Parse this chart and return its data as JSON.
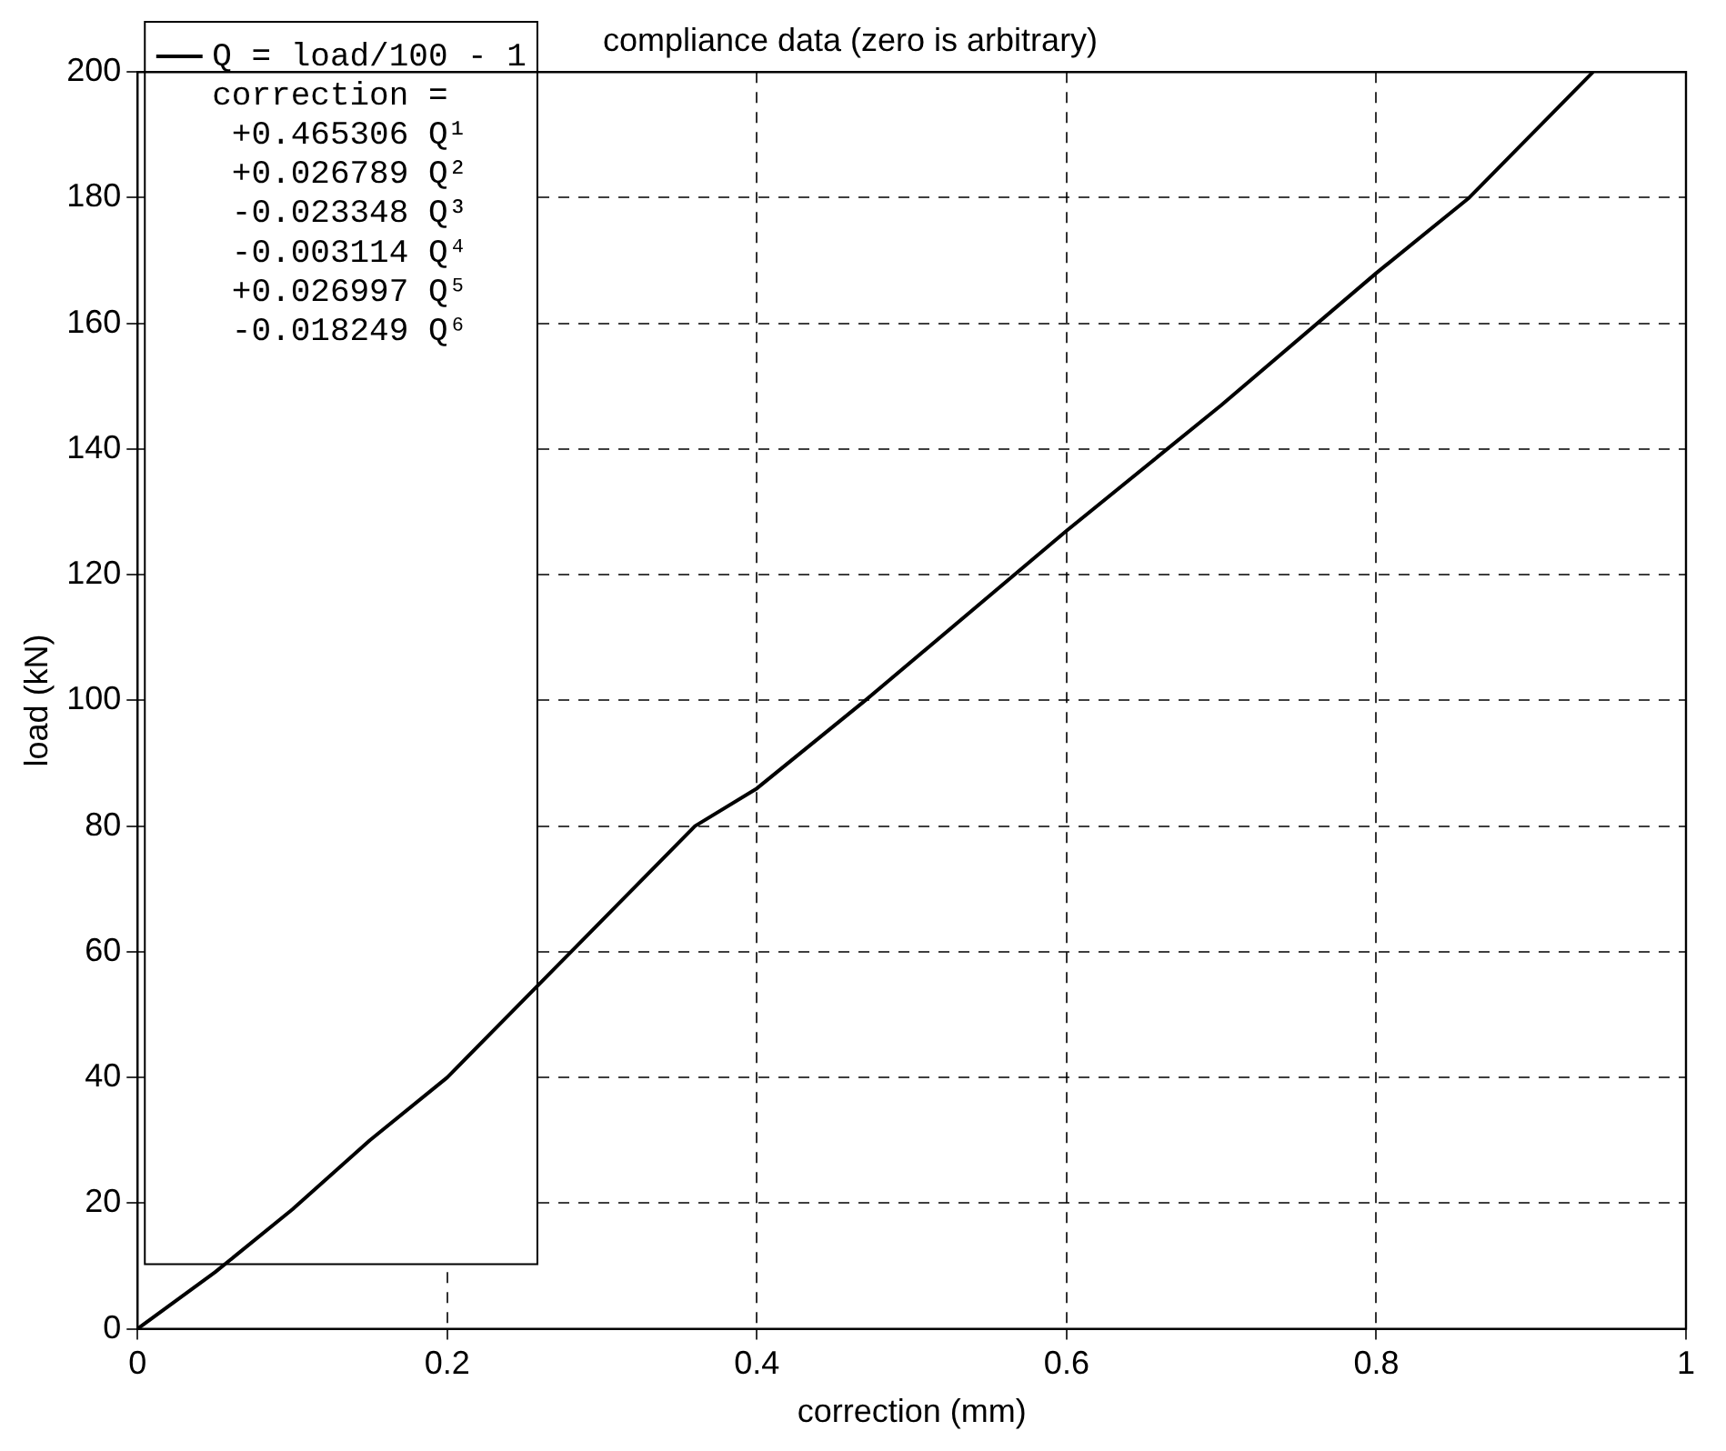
{
  "chart_data": {
    "type": "line",
    "title": "compliance data (zero is arbitrary)",
    "xlabel": "correction (mm)",
    "ylabel": "load (kN)",
    "series": [
      {
        "name": "Q = load/100 - 1\ncorrection =\n +0.465306 Q¹\n +0.026789 Q²\n -0.023348 Q³\n -0.003114 Q⁴\n +0.026997 Q⁵\n -0.018249 Q⁶",
        "color": "#000000",
        "x": [
          0,
          0.05,
          0.1,
          0.15,
          0.2,
          0.28,
          0.36,
          0.4,
          0.47,
          0.6,
          0.7,
          0.8,
          0.86,
          0.94
        ],
        "values": [
          0,
          9,
          19,
          30,
          40,
          60,
          80,
          86,
          100,
          127,
          147,
          168,
          180,
          200
        ]
      }
    ],
    "xlim": [
      0,
      1
    ],
    "xticks": [
      0,
      0.2,
      0.4,
      0.6,
      0.8,
      1
    ],
    "ylim": [
      0,
      200
    ],
    "yticks": [
      0,
      20,
      40,
      60,
      80,
      100,
      120,
      140,
      160,
      180,
      200
    ],
    "grid": true,
    "legend": "top left",
    "marker": "none",
    "line_style": "solid"
  }
}
